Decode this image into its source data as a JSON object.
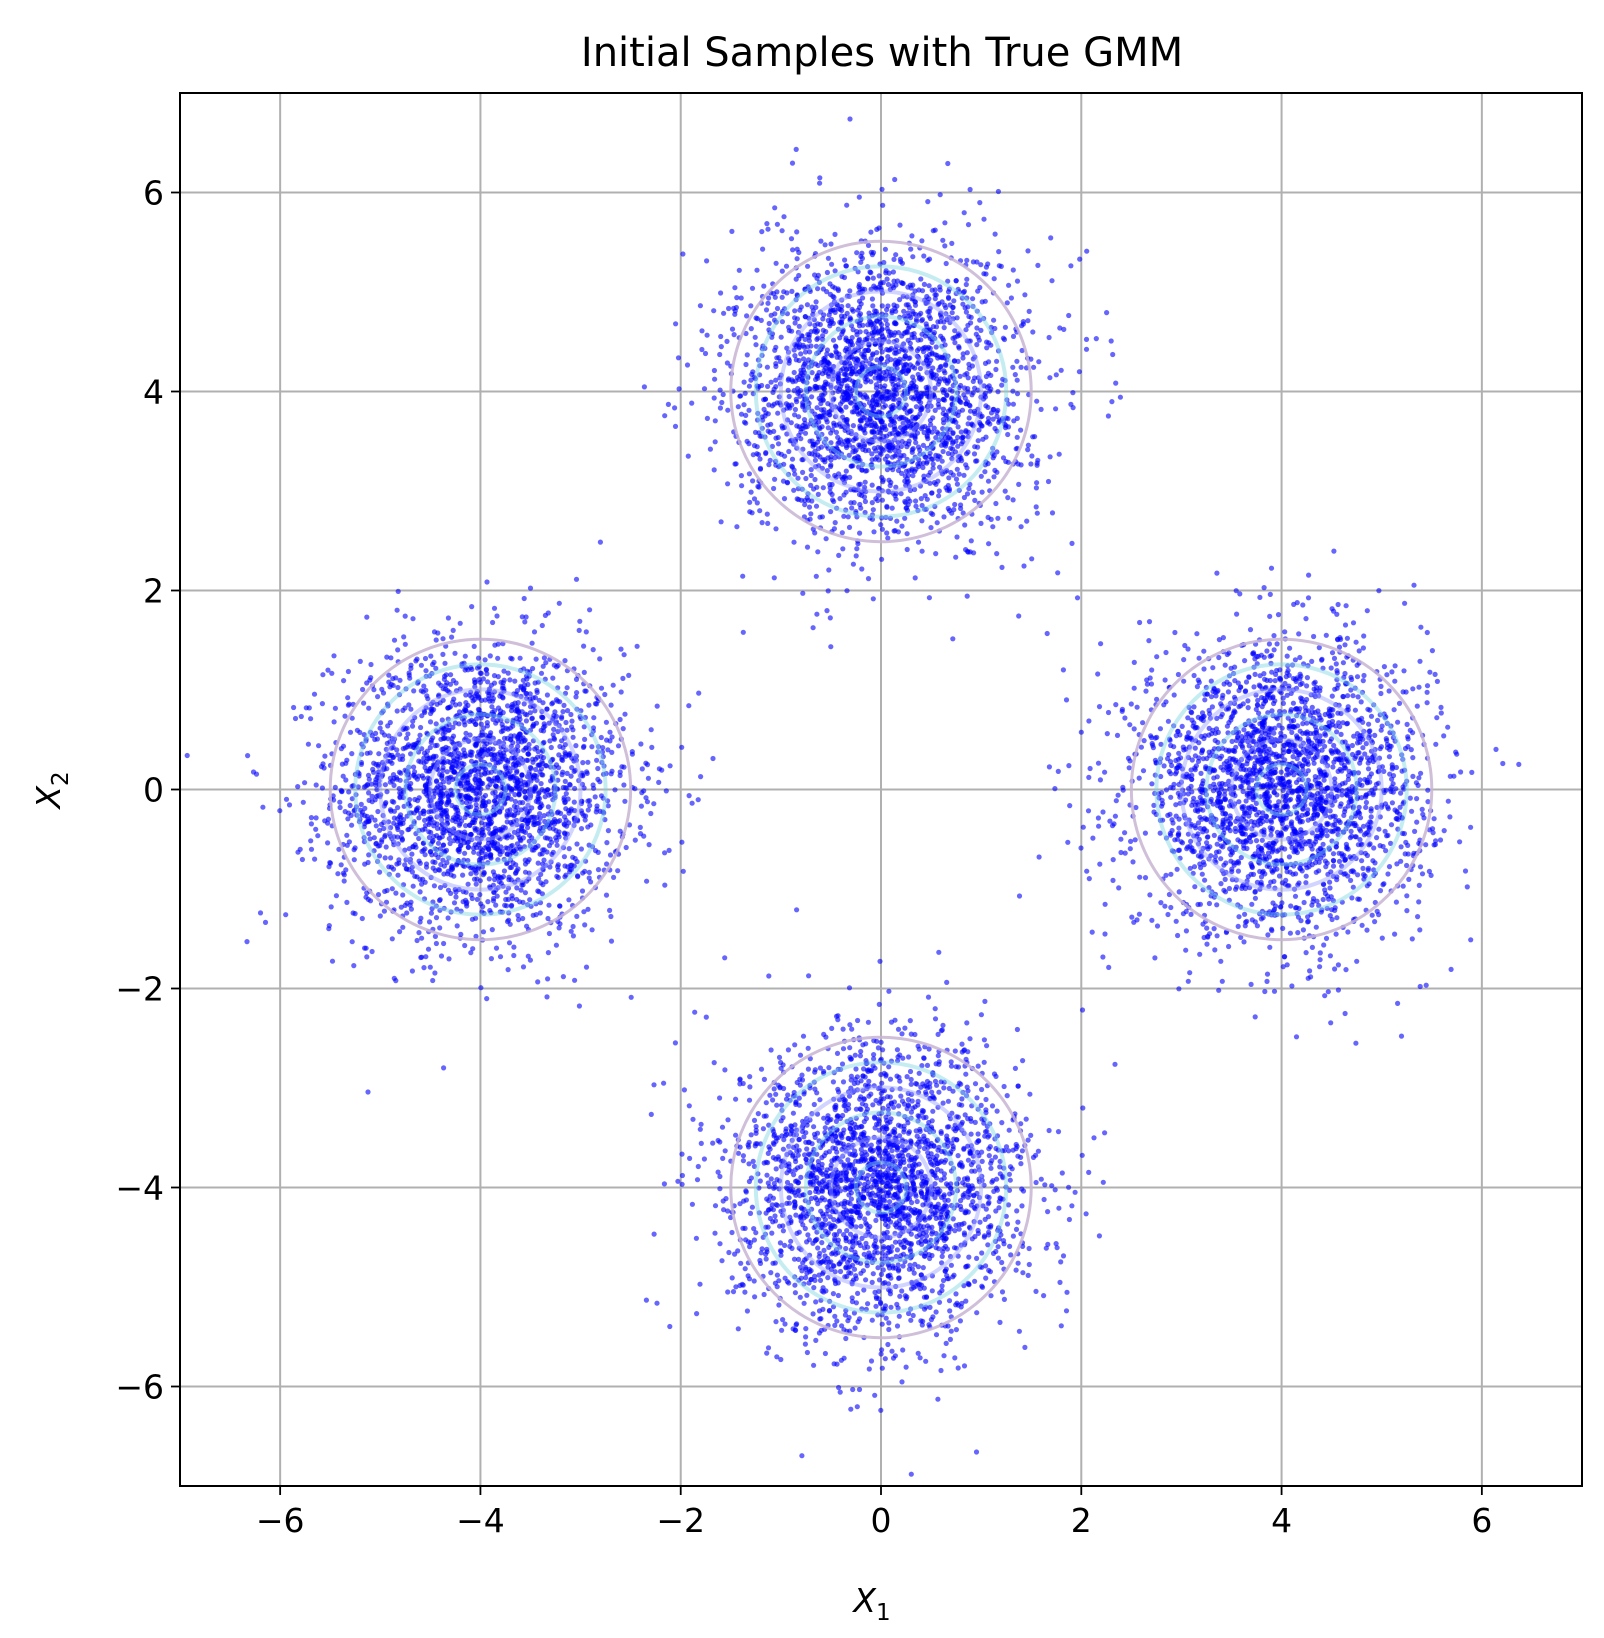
{
  "chart_data": {
    "type": "scatter",
    "title": "Initial Samples with True GMM",
    "xlabel": "X",
    "xlabel_sub": "1",
    "ylabel": "X",
    "ylabel_sub": "2",
    "xlim": [
      -7,
      7
    ],
    "ylim": [
      -7,
      7
    ],
    "xticks": [
      -6,
      -4,
      -2,
      0,
      2,
      4,
      6
    ],
    "yticks": [
      -6,
      -4,
      -2,
      0,
      2,
      4,
      6
    ],
    "xtick_labels": [
      "−6",
      "−4",
      "−2",
      "0",
      "2",
      "4",
      "6"
    ],
    "ytick_labels": [
      "−6",
      "−4",
      "−2",
      "0",
      "2",
      "4",
      "6"
    ],
    "grid": true,
    "legend": "none",
    "point_color": "#0000ff",
    "contour_colors": [
      "#c8b4d2",
      "#7fd6e0",
      "#9aa0ff"
    ],
    "clusters": [
      {
        "mean": [
          -4,
          0
        ],
        "std": [
          0.5,
          0.5
        ]
      },
      {
        "mean": [
          4,
          0
        ],
        "std": [
          0.5,
          0.5
        ]
      },
      {
        "mean": [
          0,
          4
        ],
        "std": [
          0.5,
          0.5
        ]
      },
      {
        "mean": [
          0,
          -4
        ],
        "std": [
          0.5,
          0.5
        ]
      }
    ],
    "samples_per_cluster": 2500,
    "contour_levels": [
      0.25,
      0.5,
      0.75,
      1.0,
      1.25,
      1.5
    ]
  }
}
